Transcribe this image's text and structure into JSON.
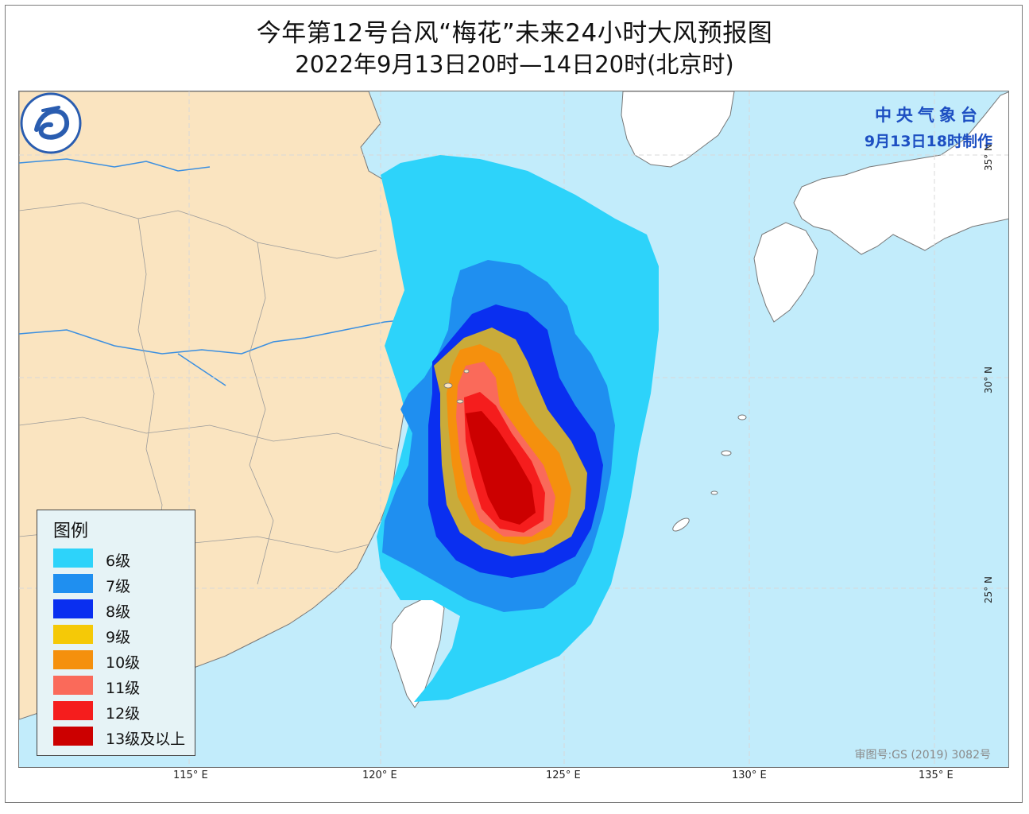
{
  "title": "今年第12号台风“梅花”未来24小时大风预报图",
  "subtitle": "2022年9月13日20时—14日20时(北京时)",
  "issuer": {
    "org": "中央气象台",
    "time": "9月13日18时制作"
  },
  "approval_number": "审图号:GS (2019) 3082号",
  "legend": {
    "title": "图例",
    "items": [
      {
        "label": "6级",
        "color": "#2dd3fa"
      },
      {
        "label": "7级",
        "color": "#1f8ff0"
      },
      {
        "label": "8级",
        "color": "#0a2ff0"
      },
      {
        "label": "9级",
        "color": "#c9ab3a"
      },
      {
        "label": "10级",
        "color": "#f5900d"
      },
      {
        "label": "11级",
        "color": "#fa6a5a"
      },
      {
        "label": "12级",
        "color": "#f51d1d"
      },
      {
        "label": "13级及以上",
        "color": "#cc0000"
      }
    ]
  },
  "axes": {
    "longitude_labels": [
      "115° E",
      "120° E",
      "125° E",
      "130° E",
      "135° E"
    ],
    "latitude_labels": [
      "35° N",
      "30° N",
      "25° N"
    ]
  },
  "colors": {
    "land_china": "#fae4c0",
    "land_other": "#ffffff",
    "sea": "#c2ecfb",
    "rivers": "#3b8fe0",
    "issuer_text": "#1d4fc2"
  },
  "icons": {
    "logo": "cma-logo-icon"
  }
}
